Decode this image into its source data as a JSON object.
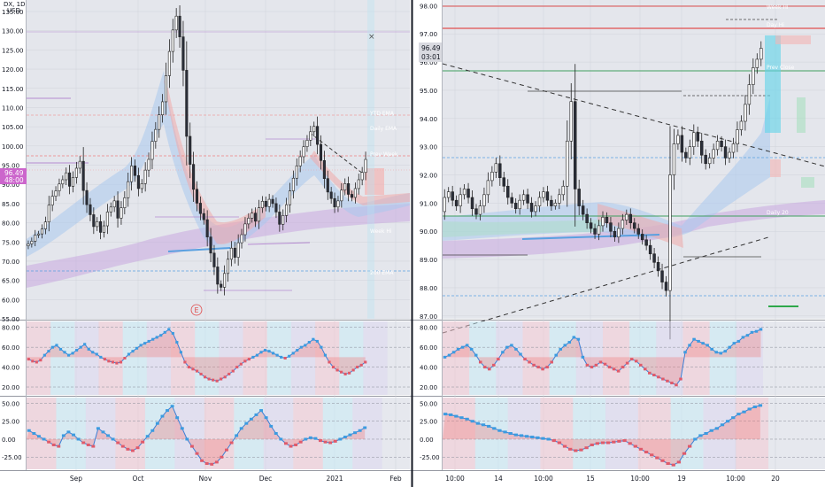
{
  "chart_data": [
    {
      "type": "candlestick",
      "panel": "left-daily",
      "header": {
        "symbol": "DX, 1D",
        "currency": "USD"
      },
      "price_axis": {
        "ticks": [
          "135.00",
          "130.00",
          "125.00",
          "120.00",
          "115.00",
          "110.00",
          "105.00",
          "100.00",
          "95.00",
          "90.00",
          "85.00",
          "80.00",
          "75.00",
          "70.00",
          "65.00",
          "60.00",
          "55.00"
        ]
      },
      "time_axis": {
        "ticks": [
          "Sep",
          "Oct",
          "Nov",
          "Dec",
          "2021",
          "Feb"
        ]
      },
      "last_price": {
        "value": "96.49",
        "countdown": "48:00"
      },
      "marker": "E",
      "overlay_labels": [
        "YTD EMA",
        "Daily EMA",
        "Prev Week",
        "Week Hi",
        "200 EMA"
      ],
      "ylim": [
        55,
        138
      ],
      "closes": [
        74.5,
        75.2,
        76.8,
        77.1,
        78.4,
        80.2,
        84.6,
        86.9,
        88.3,
        90.1,
        91.2,
        93.0,
        89.5,
        91.8,
        94.2,
        96.0,
        88.4,
        84.7,
        82.1,
        79.0,
        80.3,
        77.5,
        79.2,
        82.8,
        84.1,
        85.7,
        81.2,
        83.9,
        86.5,
        90.7,
        94.8,
        92.3,
        88.9,
        90.2,
        93.7,
        96.5,
        101.2,
        104.3,
        108.1,
        111.5,
        118.3,
        124.6,
        130.2,
        133.8,
        128.4,
        119.7,
        102.5,
        95.2,
        88.7,
        85.1,
        82.4,
        80.8,
        76.3,
        72.1,
        68.5,
        64.0,
        63.2,
        66.8,
        70.5,
        73.4,
        71.0,
        74.8,
        76.9,
        79.7,
        81.2,
        82.5,
        80.4,
        83.9,
        85.6,
        84.2,
        86.1,
        85.0,
        82.8,
        79.6,
        81.9,
        84.7,
        88.3,
        91.6,
        94.8,
        97.2,
        99.8,
        101.5,
        103.7,
        105.1,
        100.4,
        96.2,
        91.5,
        88.0,
        86.3,
        84.1,
        85.7,
        88.5,
        90.2,
        87.4,
        86.6,
        88.9,
        91.2,
        93.1,
        96.49
      ]
    },
    {
      "type": "candlestick",
      "panel": "right-intraday",
      "price_axis": {
        "ticks": [
          "98.00",
          "97.00",
          "96.00",
          "95.00",
          "94.00",
          "93.00",
          "92.00",
          "91.00",
          "90.00",
          "89.00",
          "88.00",
          "87.00"
        ]
      },
      "time_axis": {
        "ticks": [
          "10:00",
          "14",
          "10:00",
          "15",
          "10:00",
          "19",
          "10:00",
          "20"
        ]
      },
      "last_price": {
        "value": "96.49",
        "countdown": "03:01"
      },
      "overlay_labels": [
        "Week Hi",
        "Day Hi",
        "Prev Close",
        "Daily 20"
      ],
      "ylim": [
        86.9,
        98.2
      ],
      "closes": [
        91.2,
        91.4,
        91.1,
        90.9,
        91.3,
        91.5,
        91.2,
        90.8,
        90.6,
        90.9,
        91.3,
        91.8,
        92.1,
        92.4,
        91.9,
        91.6,
        91.2,
        91.0,
        90.8,
        91.1,
        91.3,
        91.0,
        90.7,
        90.9,
        91.2,
        91.4,
        91.1,
        90.9,
        91.0,
        91.3,
        91.6,
        93.2,
        94.6,
        91.5,
        90.9,
        90.6,
        90.3,
        90.1,
        89.9,
        90.2,
        90.5,
        90.3,
        90.0,
        89.8,
        90.1,
        90.4,
        90.6,
        90.3,
        90.1,
        89.9,
        89.7,
        89.5,
        89.2,
        88.9,
        88.6,
        88.2,
        87.9,
        92.0,
        93.1,
        93.4,
        92.8,
        92.6,
        93.0,
        93.5,
        93.2,
        92.7,
        92.4,
        92.6,
        92.9,
        93.2,
        93.0,
        92.6,
        92.8,
        93.1,
        93.6,
        93.9,
        94.5,
        95.2,
        95.8,
        96.1,
        96.49
      ]
    },
    {
      "type": "area",
      "panel": "left-oscillator-1",
      "ticks": [
        "80.00",
        "60.00",
        "40.00",
        "20.00"
      ],
      "ylim": [
        12,
        86
      ],
      "values": [
        48,
        46,
        45,
        47,
        52,
        56,
        60,
        62,
        58,
        55,
        52,
        54,
        57,
        60,
        63,
        58,
        55,
        53,
        50,
        48,
        46,
        45,
        44,
        45,
        49,
        53,
        56,
        59,
        62,
        64,
        66,
        68,
        70,
        72,
        75,
        78,
        74,
        65,
        55,
        45,
        40,
        38,
        36,
        33,
        30,
        28,
        27,
        26,
        28,
        30,
        33,
        36,
        40,
        43,
        46,
        48,
        50,
        52,
        55,
        57,
        56,
        54,
        52,
        50,
        49,
        51,
        54,
        57,
        60,
        62,
        65,
        68,
        66,
        60,
        52,
        45,
        40,
        37,
        35,
        33,
        34,
        37,
        40,
        42,
        45
      ]
    },
    {
      "type": "area",
      "panel": "left-oscillator-2",
      "ticks": [
        "50.00",
        "25.00",
        "0.00",
        "-25.00"
      ],
      "ylim": [
        -42,
        58
      ],
      "values": [
        12,
        8,
        4,
        0,
        -4,
        -8,
        -10,
        5,
        10,
        6,
        0,
        -5,
        -8,
        -10,
        15,
        10,
        5,
        0,
        -5,
        -10,
        -14,
        -16,
        -12,
        -4,
        4,
        12,
        22,
        32,
        40,
        46,
        30,
        15,
        0,
        -10,
        -20,
        -30,
        -34,
        -35,
        -32,
        -25,
        -15,
        -5,
        5,
        15,
        22,
        28,
        34,
        40,
        30,
        18,
        8,
        0,
        -6,
        -10,
        -8,
        -4,
        0,
        2,
        1,
        -2,
        -4,
        -5,
        -3,
        0,
        3,
        6,
        9,
        12,
        16
      ]
    },
    {
      "type": "area",
      "panel": "right-oscillator-1",
      "ticks": [
        "80.00",
        "60.00",
        "40.00",
        "20.00"
      ],
      "ylim": [
        12,
        86
      ],
      "values": [
        50,
        52,
        55,
        58,
        60,
        62,
        58,
        52,
        45,
        40,
        38,
        42,
        48,
        55,
        60,
        62,
        58,
        53,
        48,
        45,
        42,
        40,
        38,
        40,
        45,
        52,
        58,
        62,
        65,
        70,
        68,
        50,
        42,
        40,
        42,
        45,
        43,
        40,
        38,
        36,
        40,
        44,
        48,
        46,
        42,
        38,
        34,
        32,
        30,
        28,
        26,
        24,
        22,
        28,
        55,
        62,
        68,
        66,
        64,
        62,
        58,
        55,
        54,
        56,
        60,
        64,
        66,
        70,
        72,
        75,
        76,
        78
      ]
    },
    {
      "type": "area",
      "panel": "right-oscillator-2",
      "ticks": [
        "50.00",
        "25.00",
        "0.00",
        "-25.00"
      ],
      "ylim": [
        -42,
        58
      ],
      "values": [
        35,
        34,
        32,
        30,
        28,
        25,
        22,
        20,
        18,
        15,
        12,
        10,
        8,
        6,
        5,
        4,
        3,
        2,
        1,
        0,
        -2,
        -5,
        -10,
        -14,
        -16,
        -15,
        -12,
        -8,
        -6,
        -5,
        -5,
        -4,
        -3,
        -2,
        -6,
        -10,
        -14,
        -18,
        -22,
        -26,
        -30,
        -34,
        -36,
        -32,
        -20,
        -10,
        0,
        5,
        8,
        12,
        15,
        20,
        25,
        30,
        35,
        38,
        42,
        45,
        47
      ]
    }
  ]
}
